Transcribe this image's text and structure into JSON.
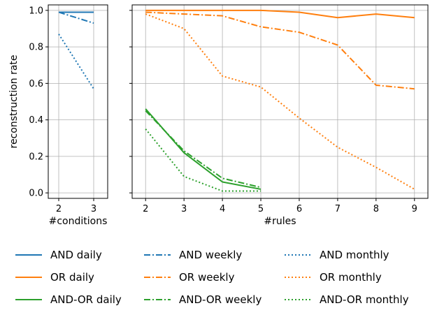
{
  "chart_data": [
    {
      "type": "line",
      "xlabel": "#conditions",
      "ylabel": "reconstruction rate",
      "x": [
        2,
        3
      ],
      "xticks": [
        2,
        3
      ],
      "xlim": [
        1.7,
        3.4
      ],
      "ylim": [
        -0.03,
        1.03
      ],
      "yticks": [
        0.0,
        0.2,
        0.4,
        0.6,
        0.8,
        1.0
      ],
      "yticklabels": [
        "0.0",
        "0.2",
        "0.4",
        "0.6",
        "0.8",
        "1.0"
      ],
      "grid": true,
      "series": [
        {
          "name": "AND daily",
          "color": "#1f77b4",
          "dash": "solid",
          "values": [
            0.99,
            0.99
          ]
        },
        {
          "name": "AND weekly",
          "color": "#1f77b4",
          "dash": "dashdot",
          "values": [
            0.99,
            0.93
          ]
        },
        {
          "name": "AND monthly",
          "color": "#1f77b4",
          "dash": "dotted",
          "values": [
            0.87,
            0.57
          ]
        }
      ]
    },
    {
      "type": "line",
      "xlabel": "#rules",
      "x": [
        2,
        3,
        4,
        5,
        6,
        7,
        8,
        9
      ],
      "xticks": [
        2,
        3,
        4,
        5,
        6,
        7,
        8,
        9
      ],
      "xlim": [
        1.65,
        9.35
      ],
      "ylim": [
        -0.03,
        1.03
      ],
      "grid": true,
      "series": [
        {
          "name": "OR daily",
          "color": "#ff7f0e",
          "dash": "solid",
          "x": [
            2,
            3,
            4,
            5,
            6,
            7,
            8,
            9
          ],
          "values": [
            1.0,
            1.0,
            1.0,
            1.0,
            0.99,
            0.96,
            0.98,
            0.96
          ]
        },
        {
          "name": "OR weekly",
          "color": "#ff7f0e",
          "dash": "dashdot",
          "x": [
            2,
            3,
            4,
            5,
            6,
            7,
            8,
            9
          ],
          "values": [
            0.99,
            0.98,
            0.97,
            0.91,
            0.88,
            0.81,
            0.59,
            0.57
          ]
        },
        {
          "name": "OR monthly",
          "color": "#ff7f0e",
          "dash": "dotted",
          "x": [
            2,
            3,
            4,
            5,
            6,
            7,
            8,
            9
          ],
          "values": [
            0.98,
            0.9,
            0.64,
            0.58,
            0.41,
            0.25,
            0.14,
            0.02
          ]
        },
        {
          "name": "AND-OR daily",
          "color": "#2ca02c",
          "dash": "solid",
          "x": [
            2,
            3,
            4,
            5
          ],
          "values": [
            0.46,
            0.22,
            0.06,
            0.02
          ]
        },
        {
          "name": "AND-OR weekly",
          "color": "#2ca02c",
          "dash": "dashdot",
          "x": [
            2,
            3,
            4,
            5
          ],
          "values": [
            0.45,
            0.23,
            0.08,
            0.03
          ]
        },
        {
          "name": "AND-OR monthly",
          "color": "#2ca02c",
          "dash": "dotted",
          "x": [
            2,
            3,
            4,
            5
          ],
          "values": [
            0.35,
            0.09,
            0.01,
            0.01
          ]
        }
      ]
    }
  ],
  "legend": {
    "placement": "bottom",
    "entries": [
      {
        "label": "AND daily",
        "color": "#1f77b4",
        "dash": "solid"
      },
      {
        "label": "AND weekly",
        "color": "#1f77b4",
        "dash": "dashdot"
      },
      {
        "label": "AND monthly",
        "color": "#1f77b4",
        "dash": "dotted"
      },
      {
        "label": "OR daily",
        "color": "#ff7f0e",
        "dash": "solid"
      },
      {
        "label": "OR weekly",
        "color": "#ff7f0e",
        "dash": "dashdot"
      },
      {
        "label": "OR monthly",
        "color": "#ff7f0e",
        "dash": "dotted"
      },
      {
        "label": "AND-OR daily",
        "color": "#2ca02c",
        "dash": "solid"
      },
      {
        "label": "AND-OR weekly",
        "color": "#2ca02c",
        "dash": "dashdot"
      },
      {
        "label": "AND-OR monthly",
        "color": "#2ca02c",
        "dash": "dotted"
      }
    ]
  }
}
